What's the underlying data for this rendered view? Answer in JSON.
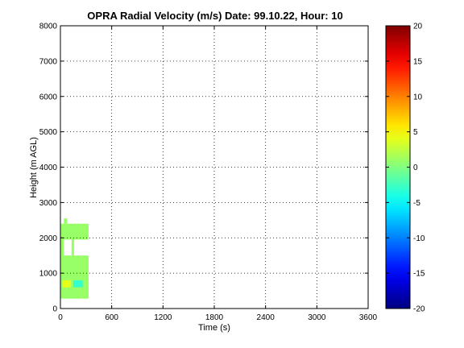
{
  "chart_data": {
    "type": "heatmap",
    "title": "OPRA Radial Velocity (m/s)  Date: 99.10.22, Hour: 10",
    "xlabel": "Time (s)",
    "ylabel": "Height (m AGL)",
    "xlim": [
      0,
      3600
    ],
    "ylim": [
      0,
      8000
    ],
    "xticks": [
      0,
      600,
      1200,
      1800,
      2400,
      3000,
      3600
    ],
    "xtick_labels": [
      "0",
      "600",
      "1200",
      "1800",
      "2400",
      "3000",
      "3600"
    ],
    "yticks": [
      0,
      1000,
      2000,
      3000,
      4000,
      5000,
      6000,
      7000,
      8000
    ],
    "ytick_labels": [
      "0",
      "1000",
      "2000",
      "3000",
      "4000",
      "5000",
      "6000",
      "7000",
      "8000"
    ],
    "grid": true,
    "colormap": "jet",
    "colorbar": {
      "clim": [
        -20,
        20
      ],
      "ticks": [
        -20,
        -15,
        -10,
        -5,
        0,
        5,
        10,
        15,
        20
      ],
      "tick_labels": [
        "-20",
        "-15",
        "-10",
        "-5",
        "0",
        "5",
        "10",
        "15",
        "20"
      ]
    },
    "cells": [
      {
        "t0": 0,
        "t1": 330,
        "h0": 280,
        "h1": 1500,
        "v": 1
      },
      {
        "t0": 0,
        "t1": 330,
        "h0": 1950,
        "h1": 2400,
        "v": 1
      },
      {
        "t0": 40,
        "t1": 80,
        "h0": 2400,
        "h1": 2550,
        "v": 1
      },
      {
        "t0": 20,
        "t1": 120,
        "h0": 600,
        "h1": 800,
        "v": 4
      },
      {
        "t0": 150,
        "t1": 260,
        "h0": 600,
        "h1": 800,
        "v": -3
      },
      {
        "t0": 0,
        "t1": 40,
        "h0": 1500,
        "h1": 1950,
        "v": 1
      },
      {
        "t0": 130,
        "t1": 160,
        "h0": 1500,
        "h1": 1950,
        "v": 1
      }
    ]
  }
}
